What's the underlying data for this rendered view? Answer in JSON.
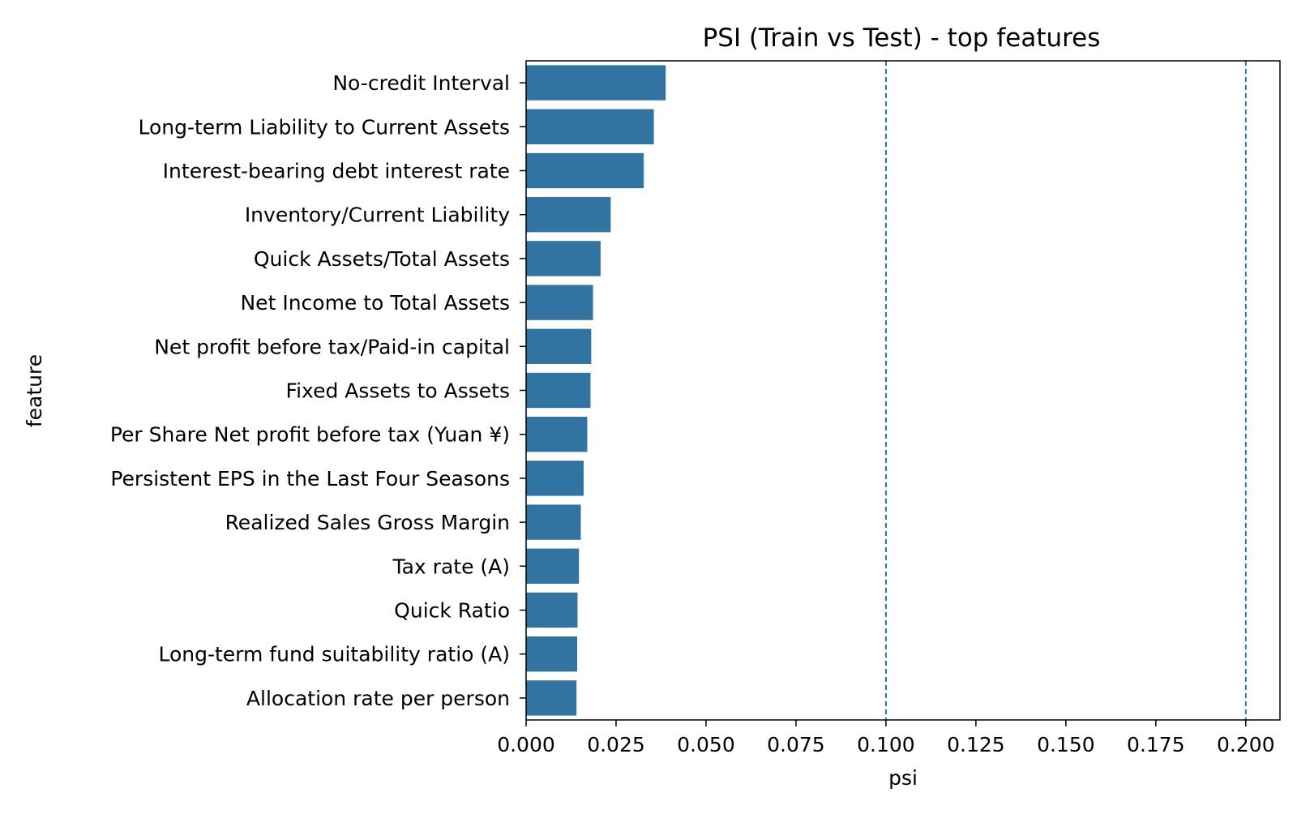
{
  "chart_data": {
    "type": "bar",
    "orientation": "horizontal",
    "title": "PSI (Train vs Test) - top features",
    "xlabel": "psi",
    "ylabel": "feature",
    "categories": [
      "No-credit Interval",
      "Long-term Liability to Current Assets",
      "Interest-bearing debt interest rate",
      "Inventory/Current Liability",
      "Quick Assets/Total Assets",
      "Net Income to Total Assets",
      "Net profit before tax/Paid-in capital",
      "Fixed Assets to Assets",
      "Per Share Net profit before tax (Yuan ¥)",
      "Persistent EPS in the Last Four Seasons",
      "Realized Sales Gross Margin",
      "Tax rate (A)",
      "Quick Ratio",
      "Long-term fund suitability ratio (A)",
      "Allocation rate per person"
    ],
    "values": [
      0.0388,
      0.0355,
      0.0327,
      0.0235,
      0.0207,
      0.0186,
      0.0181,
      0.0179,
      0.017,
      0.016,
      0.0152,
      0.0147,
      0.0143,
      0.0142,
      0.014
    ],
    "xlim": [
      0,
      0.2095
    ],
    "xticks": [
      "0.000",
      "0.025",
      "0.050",
      "0.075",
      "0.100",
      "0.125",
      "0.150",
      "0.175",
      "0.200"
    ],
    "reference_lines": [
      0.1,
      0.2
    ],
    "grid": false,
    "bar_color": "#3274a1",
    "reference_line_color": "#1f77b4"
  }
}
